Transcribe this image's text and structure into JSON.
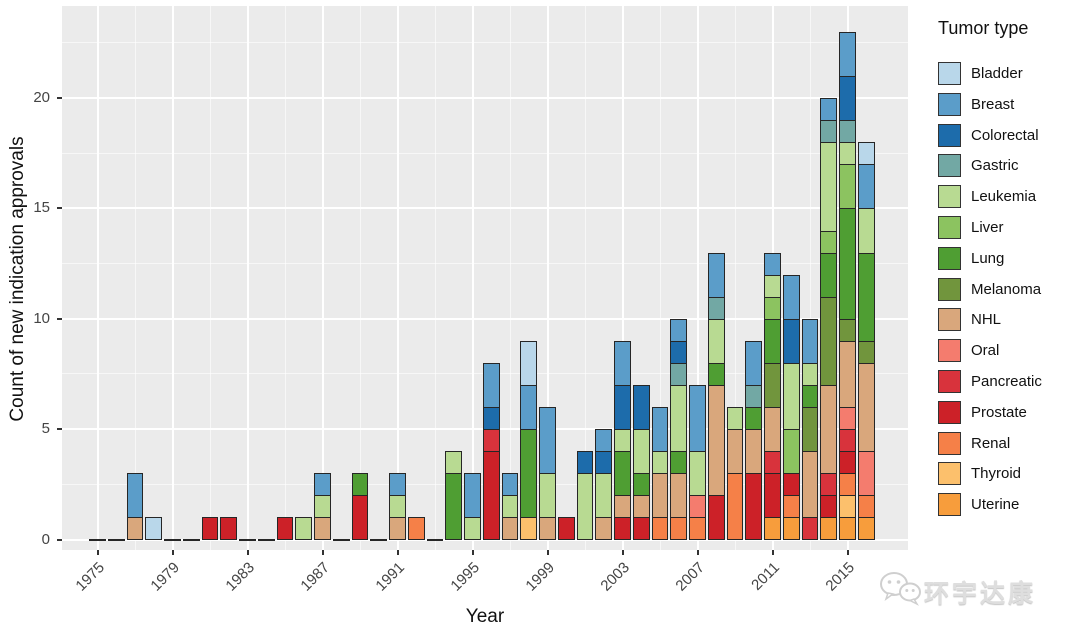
{
  "figure": {
    "y_axis_title": "Count of new indication approvals",
    "x_axis_title": "Year",
    "legend_title": "Tumor type"
  },
  "watermark": {
    "icon": "wechat-icon",
    "text": "环宇达康"
  },
  "colors": {
    "panel_background": "#ebebeb",
    "grid": "#ffffff",
    "bar_outline": "#262626",
    "axis_text": "#444444"
  },
  "chart_data": {
    "type": "bar",
    "subtype": "stacked",
    "title": "",
    "xlabel": "Year",
    "ylabel": "Count of new indication approvals",
    "legend_title": "Tumor type",
    "legend_position": "right",
    "grid": true,
    "xlim": [
      1973.5,
      2018
    ],
    "ylim": [
      0,
      24
    ],
    "x_major_ticks": [
      1975,
      1979,
      1983,
      1987,
      1991,
      1995,
      1999,
      2003,
      2007,
      2011,
      2015
    ],
    "x_minor_ticks": [
      1977,
      1981,
      1985,
      1989,
      1993,
      1997,
      2001,
      2005,
      2009,
      2013
    ],
    "y_major_ticks": [
      0,
      5,
      10,
      15,
      20
    ],
    "y_minor_ticks": [
      2.5,
      7.5,
      12.5,
      17.5,
      22.5
    ],
    "legend": [
      {
        "label": "Bladder",
        "color": "#b9d7ea"
      },
      {
        "label": "Breast",
        "color": "#5b9dc9"
      },
      {
        "label": "Colorectal",
        "color": "#1d6cab"
      },
      {
        "label": "Gastric",
        "color": "#72a8a4"
      },
      {
        "label": "Leukemia",
        "color": "#b8da92"
      },
      {
        "label": "Liver",
        "color": "#8cc360"
      },
      {
        "label": "Lung",
        "color": "#4f9e33"
      },
      {
        "label": "Melanoma",
        "color": "#71953d"
      },
      {
        "label": "NHL",
        "color": "#d9a77c"
      },
      {
        "label": "Oral",
        "color": "#f47c6e"
      },
      {
        "label": "Pancreatic",
        "color": "#d8333c"
      },
      {
        "label": "Prostate",
        "color": "#cc2128"
      },
      {
        "label": "Renal",
        "color": "#f58048"
      },
      {
        "label": "Thyroid",
        "color": "#fcc06c"
      },
      {
        "label": "Uterine",
        "color": "#f79d3c"
      }
    ],
    "stack_order_bottom_to_top": [
      "Uterine",
      "Thyroid",
      "Renal",
      "Prostate",
      "Pancreatic",
      "Oral",
      "NHL",
      "Melanoma",
      "Lung",
      "Liver",
      "Leukemia",
      "Gastric",
      "Colorectal",
      "Breast",
      "Bladder"
    ],
    "years": [
      {
        "year": 1975,
        "total": 0,
        "segments": {}
      },
      {
        "year": 1976,
        "total": 0,
        "segments": {}
      },
      {
        "year": 1977,
        "total": 3,
        "segments": {
          "NHL": 1,
          "Breast": 2
        }
      },
      {
        "year": 1978,
        "total": 1,
        "segments": {
          "Bladder": 1
        }
      },
      {
        "year": 1979,
        "total": 0,
        "segments": {}
      },
      {
        "year": 1980,
        "total": 0,
        "segments": {}
      },
      {
        "year": 1981,
        "total": 1,
        "segments": {
          "Prostate": 1
        }
      },
      {
        "year": 1982,
        "total": 1,
        "segments": {
          "Prostate": 1
        }
      },
      {
        "year": 1983,
        "total": 0,
        "segments": {}
      },
      {
        "year": 1984,
        "total": 0,
        "segments": {}
      },
      {
        "year": 1985,
        "total": 1,
        "segments": {
          "Prostate": 1
        }
      },
      {
        "year": 1986,
        "total": 1,
        "segments": {
          "Leukemia": 1
        }
      },
      {
        "year": 1987,
        "total": 3,
        "segments": {
          "NHL": 1,
          "Leukemia": 1,
          "Breast": 1
        }
      },
      {
        "year": 1988,
        "total": 0,
        "segments": {}
      },
      {
        "year": 1989,
        "total": 3,
        "segments": {
          "Prostate": 2,
          "Lung": 1
        }
      },
      {
        "year": 1990,
        "total": 0,
        "segments": {}
      },
      {
        "year": 1991,
        "total": 3,
        "segments": {
          "NHL": 1,
          "Leukemia": 1,
          "Breast": 1
        }
      },
      {
        "year": 1992,
        "total": 1,
        "segments": {
          "Renal": 1
        }
      },
      {
        "year": 1993,
        "total": 0,
        "segments": {}
      },
      {
        "year": 1994,
        "total": 4,
        "segments": {
          "Lung": 3,
          "Leukemia": 1
        }
      },
      {
        "year": 1995,
        "total": 3,
        "segments": {
          "Leukemia": 1,
          "Breast": 2
        }
      },
      {
        "year": 1996,
        "total": 8,
        "segments": {
          "Prostate": 4,
          "Pancreatic": 1,
          "Colorectal": 1,
          "Breast": 2
        }
      },
      {
        "year": 1997,
        "total": 3,
        "segments": {
          "NHL": 1,
          "Leukemia": 1,
          "Breast": 1
        }
      },
      {
        "year": 1998,
        "total": 9,
        "segments": {
          "Thyroid": 1,
          "Lung": 4,
          "Breast": 2,
          "Bladder": 2
        }
      },
      {
        "year": 1999,
        "total": 6,
        "segments": {
          "NHL": 1,
          "Leukemia": 2,
          "Breast": 3
        }
      },
      {
        "year": 2000,
        "total": 1,
        "segments": {
          "Prostate": 1
        }
      },
      {
        "year": 2001,
        "total": 4,
        "segments": {
          "Leukemia": 3,
          "Colorectal": 1
        }
      },
      {
        "year": 2002,
        "total": 5,
        "segments": {
          "NHL": 1,
          "Leukemia": 2,
          "Colorectal": 1,
          "Breast": 1
        }
      },
      {
        "year": 2003,
        "total": 9,
        "segments": {
          "Prostate": 1,
          "NHL": 1,
          "Lung": 2,
          "Leukemia": 1,
          "Colorectal": 2,
          "Breast": 2
        }
      },
      {
        "year": 2004,
        "total": 7,
        "segments": {
          "Prostate": 1,
          "NHL": 1,
          "Lung": 1,
          "Leukemia": 2,
          "Colorectal": 2
        }
      },
      {
        "year": 2005,
        "total": 6,
        "segments": {
          "Renal": 1,
          "NHL": 2,
          "Leukemia": 1,
          "Breast": 2
        }
      },
      {
        "year": 2006,
        "total": 10,
        "segments": {
          "Renal": 1,
          "NHL": 2,
          "Lung": 1,
          "Leukemia": 3,
          "Gastric": 1,
          "Colorectal": 1,
          "Breast": 1
        }
      },
      {
        "year": 2007,
        "total": 7,
        "segments": {
          "Renal": 1,
          "Oral": 1,
          "Leukemia": 2,
          "Breast": 3
        }
      },
      {
        "year": 2008,
        "total": 13,
        "segments": {
          "Prostate": 2,
          "NHL": 5,
          "Lung": 1,
          "Leukemia": 2,
          "Gastric": 1,
          "Breast": 2
        }
      },
      {
        "year": 2009,
        "total": 6,
        "segments": {
          "Renal": 3,
          "NHL": 2,
          "Leukemia": 1
        }
      },
      {
        "year": 2010,
        "total": 9,
        "segments": {
          "Prostate": 3,
          "NHL": 2,
          "Lung": 1,
          "Gastric": 1,
          "Breast": 2
        }
      },
      {
        "year": 2011,
        "total": 13,
        "segments": {
          "Uterine": 1,
          "Prostate": 2,
          "Pancreatic": 1,
          "NHL": 2,
          "Melanoma": 2,
          "Lung": 2,
          "Liver": 1,
          "Leukemia": 1,
          "Breast": 1
        }
      },
      {
        "year": 2012,
        "total": 12,
        "segments": {
          "Uterine": 1,
          "Renal": 1,
          "Prostate": 1,
          "Liver": 2,
          "Leukemia": 3,
          "Colorectal": 2,
          "Breast": 2
        }
      },
      {
        "year": 2013,
        "total": 10,
        "segments": {
          "NHL": 3,
          "Pancreatic": 1,
          "Melanoma": 2,
          "Lung": 1,
          "Leukemia": 1,
          "Breast": 2
        }
      },
      {
        "year": 2014,
        "total": 20,
        "segments": {
          "Uterine": 1,
          "Prostate": 1,
          "Pancreatic": 1,
          "NHL": 4,
          "Melanoma": 4,
          "Lung": 2,
          "Liver": 1,
          "Leukemia": 4,
          "Gastric": 1,
          "Breast": 1
        }
      },
      {
        "year": 2015,
        "total": 23,
        "segments": {
          "Uterine": 1,
          "Thyroid": 1,
          "Renal": 1,
          "Prostate": 1,
          "Pancreatic": 1,
          "Oral": 1,
          "NHL": 3,
          "Melanoma": 1,
          "Lung": 5,
          "Liver": 2,
          "Leukemia": 1,
          "Gastric": 1,
          "Colorectal": 2,
          "Breast": 2
        }
      },
      {
        "year": 2016,
        "total": 18,
        "segments": {
          "Uterine": 1,
          "Renal": 1,
          "Oral": 2,
          "NHL": 4,
          "Melanoma": 1,
          "Lung": 4,
          "Leukemia": 2,
          "Breast": 2,
          "Bladder": 1
        }
      }
    ]
  }
}
